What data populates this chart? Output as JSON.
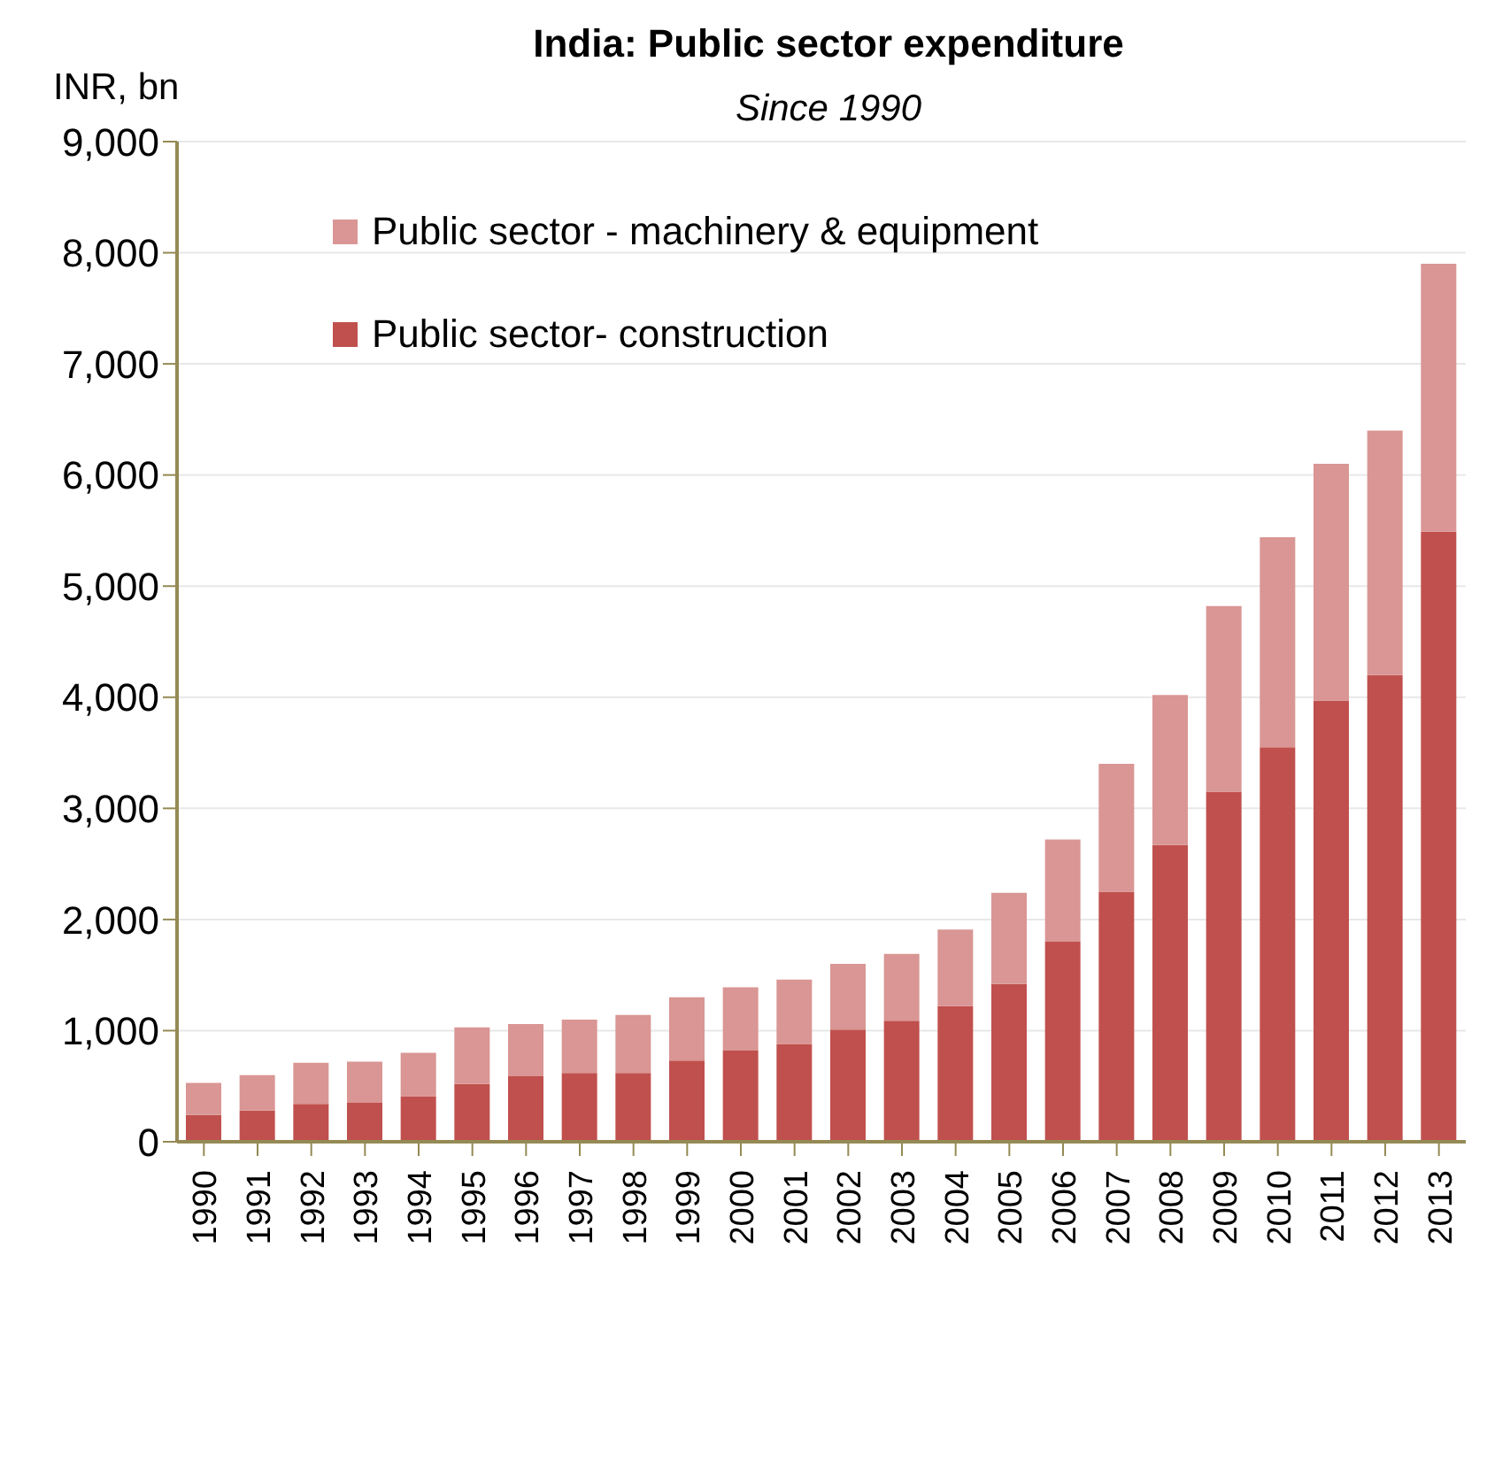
{
  "chart_data": {
    "type": "bar",
    "title": "India: Public sector expenditure",
    "subtitle": "Since 1990",
    "ylabel": "INR, bn",
    "categories": [
      "1990",
      "1991",
      "1992",
      "1993",
      "1994",
      "1995",
      "1996",
      "1997",
      "1998",
      "1999",
      "2000",
      "2001",
      "2002",
      "2003",
      "2004",
      "2005",
      "2006",
      "2007",
      "2008",
      "2009",
      "2010",
      "2011",
      "2012",
      "2013"
    ],
    "series": [
      {
        "name": "Public sector- construction",
        "color": "#c0504d",
        "values": [
          240,
          280,
          340,
          350,
          410,
          520,
          590,
          620,
          620,
          730,
          820,
          880,
          1010,
          1090,
          1220,
          1420,
          1800,
          2250,
          2670,
          3150,
          3550,
          3970,
          4200,
          5490
        ]
      },
      {
        "name": "Public sector - machinery & equipment",
        "color": "#d99694",
        "values": [
          290,
          320,
          370,
          370,
          390,
          510,
          470,
          480,
          520,
          570,
          570,
          580,
          590,
          600,
          690,
          820,
          920,
          1150,
          1350,
          1670,
          1890,
          2130,
          2200,
          2410
        ]
      }
    ],
    "stacked": true,
    "ylim": [
      0,
      9000
    ],
    "yticks": [
      0,
      {
        "value": 1000,
        "label": "1,000"
      },
      {
        "value": 2000,
        "label": "2,000"
      },
      {
        "value": 3000,
        "label": "3,000"
      },
      {
        "value": 4000,
        "label": "4,000"
      },
      {
        "value": 5000,
        "label": "5,000"
      },
      {
        "value": 6000,
        "label": "6,000"
      },
      {
        "value": 7000,
        "label": "7,000"
      },
      {
        "value": 8000,
        "label": "8,000"
      },
      {
        "value": 9000,
        "label": "9,000"
      }
    ],
    "grid": "y",
    "legend": "top left"
  }
}
